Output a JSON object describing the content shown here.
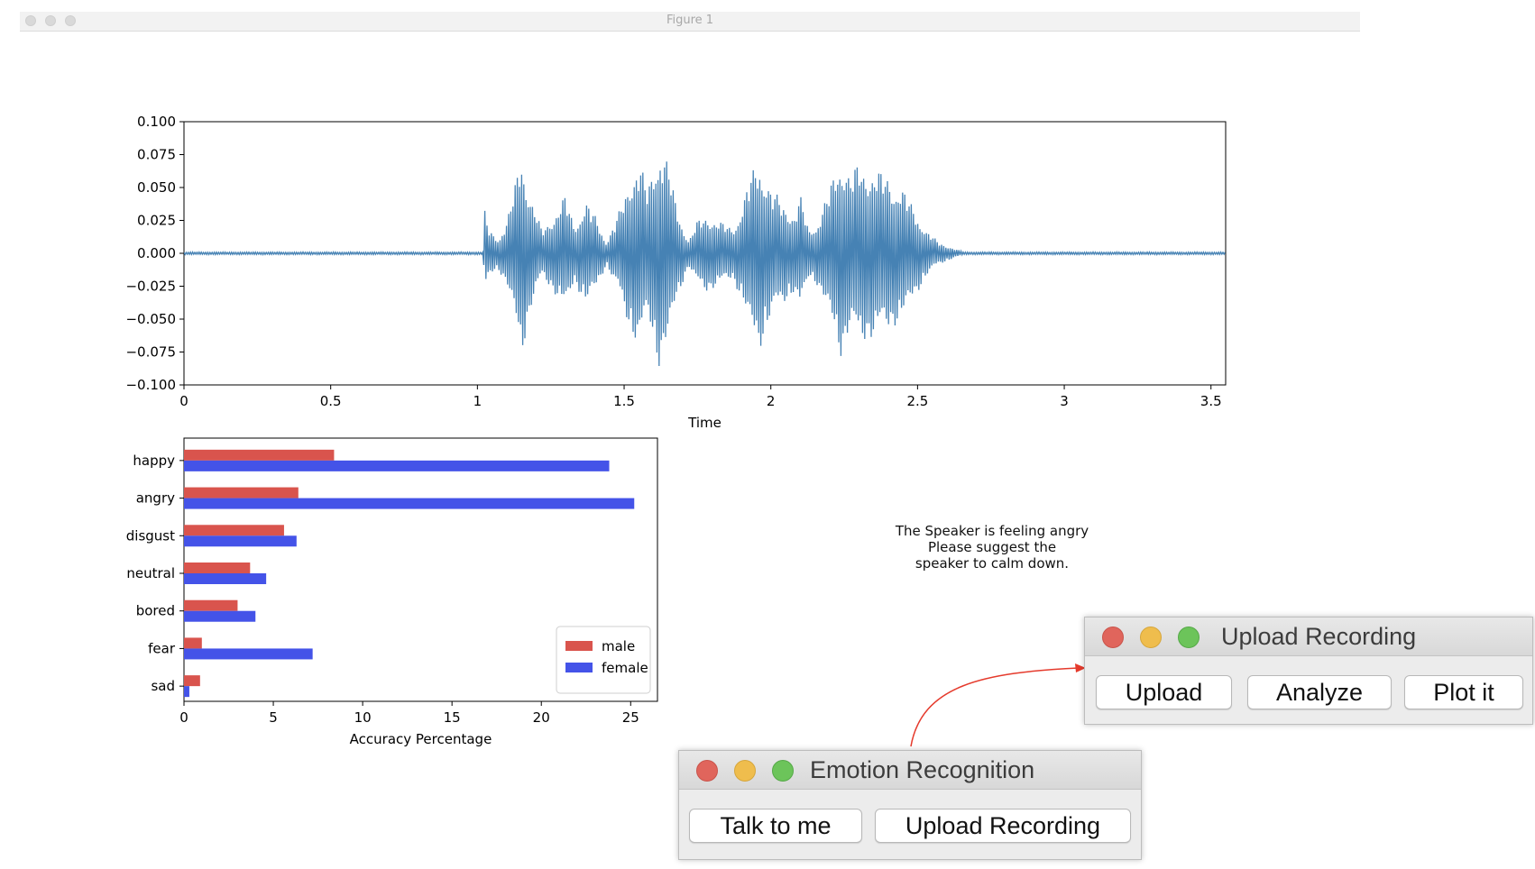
{
  "figure_window": {
    "title": "Figure 1"
  },
  "chart_data": [
    {
      "type": "line",
      "title": "",
      "xlabel": "Time",
      "ylabel": "",
      "xlim": [
        0,
        3.55
      ],
      "ylim": [
        -0.1,
        0.1
      ],
      "x_ticks": [
        "0",
        "0.5",
        "1",
        "1.5",
        "2",
        "2.5",
        "3",
        "3.5"
      ],
      "x_tick_values": [
        0,
        0.5,
        1,
        1.5,
        2,
        2.5,
        3,
        3.5
      ],
      "y_ticks": [
        "0.100",
        "0.075",
        "0.050",
        "0.025",
        "0.000",
        "−0.025",
        "−0.050",
        "−0.075",
        "−0.100"
      ],
      "y_tick_values": [
        0.1,
        0.075,
        0.05,
        0.025,
        0,
        -0.025,
        -0.05,
        -0.075,
        -0.1
      ],
      "color": "#4682b4",
      "envelope": [
        [
          0,
          0.001
        ],
        [
          1.02,
          0.001
        ],
        [
          1.025,
          0.033
        ],
        [
          1.04,
          0.018
        ],
        [
          1.07,
          0.012
        ],
        [
          1.1,
          0.025
        ],
        [
          1.13,
          0.055
        ],
        [
          1.15,
          0.08
        ],
        [
          1.18,
          0.045
        ],
        [
          1.22,
          0.018
        ],
        [
          1.26,
          0.03
        ],
        [
          1.3,
          0.045
        ],
        [
          1.33,
          0.022
        ],
        [
          1.37,
          0.04
        ],
        [
          1.4,
          0.03
        ],
        [
          1.44,
          0.009
        ],
        [
          1.48,
          0.03
        ],
        [
          1.52,
          0.06
        ],
        [
          1.55,
          0.072
        ],
        [
          1.58,
          0.05
        ],
        [
          1.62,
          0.088
        ],
        [
          1.65,
          0.07
        ],
        [
          1.68,
          0.035
        ],
        [
          1.72,
          0.01
        ],
        [
          1.75,
          0.025
        ],
        [
          1.78,
          0.03
        ],
        [
          1.82,
          0.025
        ],
        [
          1.87,
          0.02
        ],
        [
          1.9,
          0.035
        ],
        [
          1.93,
          0.06
        ],
        [
          1.96,
          0.075
        ],
        [
          2.0,
          0.05
        ],
        [
          2.04,
          0.04
        ],
        [
          2.08,
          0.03
        ],
        [
          2.1,
          0.045
        ],
        [
          2.13,
          0.018
        ],
        [
          2.16,
          0.025
        ],
        [
          2.2,
          0.05
        ],
        [
          2.24,
          0.08
        ],
        [
          2.27,
          0.06
        ],
        [
          2.3,
          0.07
        ],
        [
          2.35,
          0.065
        ],
        [
          2.4,
          0.06
        ],
        [
          2.45,
          0.05
        ],
        [
          2.5,
          0.03
        ],
        [
          2.53,
          0.018
        ],
        [
          2.57,
          0.009
        ],
        [
          2.62,
          0.004
        ],
        [
          2.66,
          0.001
        ],
        [
          3.55,
          0.001
        ]
      ]
    },
    {
      "type": "bar",
      "orientation": "horizontal",
      "title": "",
      "xlabel": "Accuracy Percentage",
      "ylabel": "",
      "xlim": [
        0,
        26.5
      ],
      "x_ticks": [
        "0",
        "5",
        "10",
        "15",
        "20",
        "25"
      ],
      "x_tick_values": [
        0,
        5,
        10,
        15,
        20,
        25
      ],
      "categories": [
        "happy",
        "angry",
        "disgust",
        "neutral",
        "bored",
        "fear",
        "sad"
      ],
      "series": [
        {
          "name": "male",
          "color": "#d9544d",
          "values": [
            8.4,
            6.4,
            5.6,
            3.7,
            3.0,
            1.0,
            0.9
          ]
        },
        {
          "name": "female",
          "color": "#4453e8",
          "values": [
            23.8,
            25.2,
            6.3,
            4.6,
            4.0,
            7.2,
            0.3
          ]
        }
      ],
      "legend": "bottom-right"
    }
  ],
  "result_message": {
    "line1": "The Speaker  is feeling angry",
    "line2": "Please suggest the",
    "line3": "speaker to calm down."
  },
  "upload_window": {
    "title": "Upload Recording",
    "buttons": {
      "upload": "Upload",
      "analyze": "Analyze",
      "plot": "Plot it"
    }
  },
  "emotion_window": {
    "title": "Emotion Recognition",
    "buttons": {
      "talk": "Talk to me",
      "upload_recording": "Upload Recording"
    }
  },
  "annotation": {
    "color": "#e53a2c"
  }
}
